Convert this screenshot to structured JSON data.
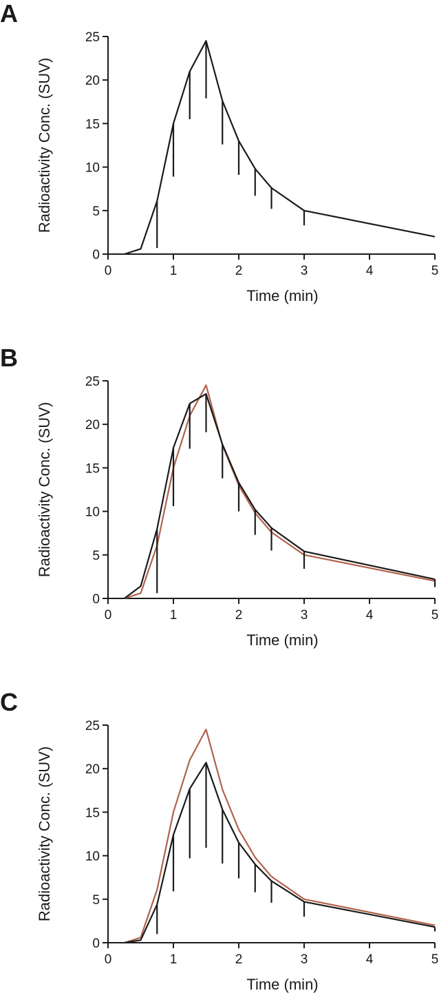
{
  "colors": {
    "axis": "#1a1a1a",
    "series_primary": "#1a1a1a",
    "series_reference": "#b0624a"
  },
  "chart_data": [
    {
      "panel_label": "A",
      "type": "line",
      "xlabel": "Time (min)",
      "ylabel": "Radioactivity Conc. (SUV)",
      "xlim": [
        0,
        5
      ],
      "ylim": [
        0,
        25
      ],
      "xticks": [
        "0",
        "1",
        "2",
        "3",
        "4",
        "5"
      ],
      "yticks": [
        "0",
        "5",
        "10",
        "15",
        "20",
        "25"
      ],
      "error_bars": "lower",
      "series": [
        {
          "color": "#1a1a1a",
          "x": [
            0.25,
            0.5,
            0.75,
            1.0,
            1.25,
            1.5,
            1.75,
            2.0,
            2.25,
            2.5,
            3.0,
            5.0
          ],
          "y": [
            0,
            0.6,
            6.1,
            15.0,
            21.0,
            24.5,
            17.6,
            13.0,
            9.8,
            7.6,
            5.0,
            2.0
          ],
          "err_low": [
            null,
            null,
            0.7,
            8.9,
            15.5,
            17.9,
            12.6,
            9.1,
            6.7,
            5.2,
            3.3,
            null
          ]
        }
      ]
    },
    {
      "panel_label": "B",
      "type": "line",
      "xlabel": "Time (min)",
      "ylabel": "Radioactivity Conc. (SUV)",
      "xlim": [
        0,
        5
      ],
      "ylim": [
        0,
        25
      ],
      "xticks": [
        "0",
        "1",
        "2",
        "3",
        "4",
        "5"
      ],
      "yticks": [
        "0",
        "5",
        "10",
        "15",
        "20",
        "25"
      ],
      "error_bars": "lower",
      "series": [
        {
          "color": "#b0624a",
          "x": [
            0.25,
            0.5,
            0.75,
            1.0,
            1.25,
            1.5,
            1.75,
            2.0,
            2.25,
            2.5,
            3.0,
            5.0
          ],
          "y": [
            0,
            0.6,
            6.1,
            15.0,
            21.0,
            24.5,
            17.6,
            13.0,
            9.8,
            7.6,
            5.0,
            2.0
          ],
          "err_low": []
        },
        {
          "color": "#1a1a1a",
          "x": [
            0.25,
            0.5,
            0.75,
            1.0,
            1.25,
            1.5,
            1.75,
            2.0,
            2.25,
            2.5,
            3.0,
            5.0
          ],
          "y": [
            0,
            1.4,
            8.0,
            17.3,
            22.4,
            23.5,
            17.7,
            13.3,
            10.2,
            8.1,
            5.4,
            2.2
          ],
          "err_low": [
            null,
            null,
            0.6,
            10.6,
            17.2,
            19.1,
            13.8,
            10.0,
            7.3,
            5.5,
            3.4,
            1.3
          ]
        }
      ]
    },
    {
      "panel_label": "C",
      "type": "line",
      "xlabel": "Time (min)",
      "ylabel": "Radioactivity Conc. (SUV)",
      "xlim": [
        0,
        5
      ],
      "ylim": [
        0,
        25
      ],
      "xticks": [
        "0",
        "1",
        "2",
        "3",
        "4",
        "5"
      ],
      "yticks": [
        "0",
        "5",
        "10",
        "15",
        "20",
        "25"
      ],
      "error_bars": "lower",
      "series": [
        {
          "color": "#b0624a",
          "x": [
            0.25,
            0.5,
            0.75,
            1.0,
            1.25,
            1.5,
            1.75,
            2.0,
            2.25,
            2.5,
            3.0,
            5.0
          ],
          "y": [
            0,
            0.6,
            6.1,
            15.0,
            21.0,
            24.5,
            17.6,
            13.0,
            9.8,
            7.6,
            5.0,
            2.0
          ],
          "err_low": []
        },
        {
          "color": "#1a1a1a",
          "x": [
            0.25,
            0.5,
            0.75,
            1.0,
            1.25,
            1.5,
            1.75,
            2.0,
            2.25,
            2.5,
            3.0,
            5.0
          ],
          "y": [
            0,
            0.3,
            4.4,
            12.4,
            17.7,
            20.7,
            15.3,
            11.5,
            9.0,
            7.1,
            4.7,
            1.8
          ],
          "err_low": [
            null,
            null,
            1.0,
            5.9,
            9.7,
            10.9,
            9.1,
            7.4,
            5.8,
            4.6,
            3.0,
            1.3
          ]
        }
      ]
    }
  ]
}
